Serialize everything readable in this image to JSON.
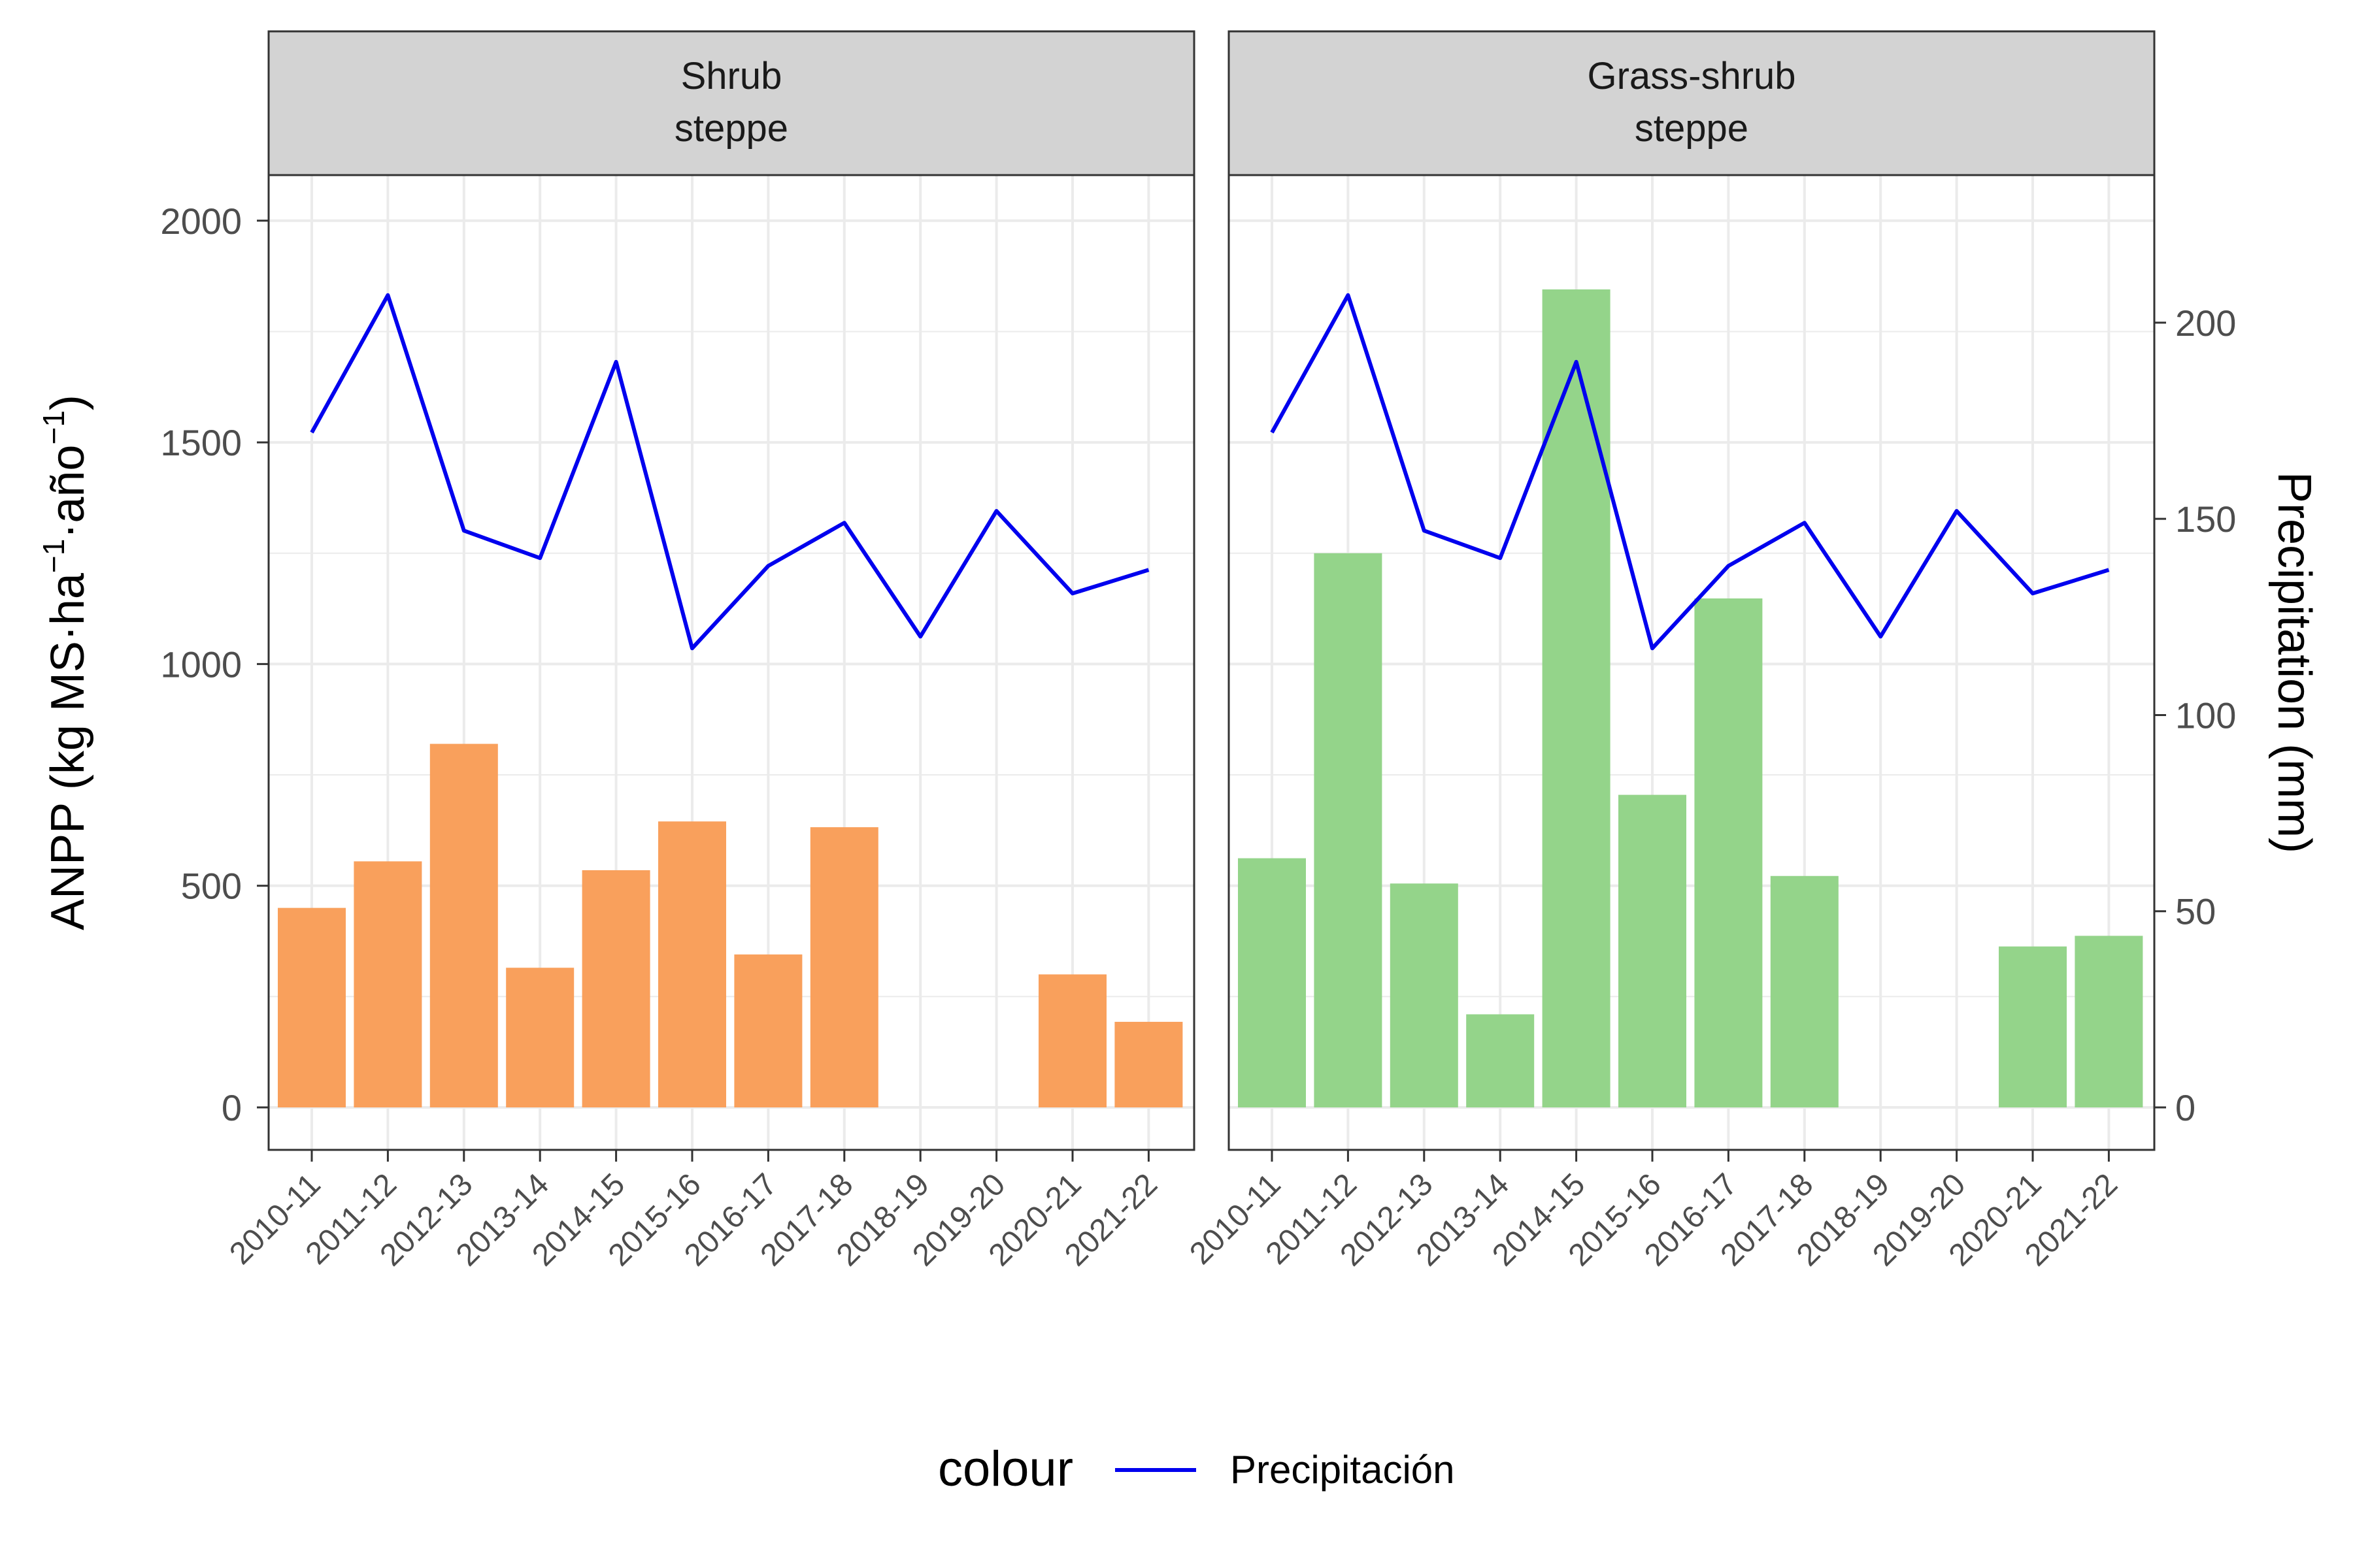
{
  "chart_data": {
    "type": "bar",
    "categories": [
      "2010-11",
      "2011-12",
      "2012-13",
      "2013-14",
      "2014-15",
      "2015-16",
      "2016-17",
      "2017-18",
      "2018-19",
      "2019-20",
      "2020-21",
      "2021-22"
    ],
    "ylabel_left": "ANPP (kg MS·ha",
    "ylabel_left_sup1": "−1",
    "ylabel_left_mid": "·año",
    "ylabel_left_sup2": "−1",
    "ylabel_left_end": ")",
    "ylabel_right": "Precipitation (mm)",
    "ylim_left": [
      -90,
      2100
    ],
    "left_ticks": [
      "0",
      "500",
      "1000",
      "1500",
      "2000"
    ],
    "left_tick_values": [
      0,
      500,
      1000,
      1500,
      2000
    ],
    "right_ticks": [
      "0",
      "50",
      "100",
      "150",
      "200"
    ],
    "right_tick_values": [
      0,
      50,
      100,
      150,
      200
    ],
    "right_axis_scale": 8.85,
    "grid": true,
    "legend": {
      "title": "colour",
      "position": "bottom",
      "entries": [
        {
          "label": "Precipitación",
          "color": "#0000EE"
        }
      ]
    },
    "panels": [
      {
        "title_line1": "Shrub",
        "title_line2": "steppe",
        "bar_color": "#F9A05C",
        "bars": [
          450,
          555,
          820,
          315,
          535,
          645,
          345,
          632,
          null,
          null,
          300,
          193
        ],
        "precip_color": "#0000EE",
        "precipitation": [
          172,
          207,
          147,
          140,
          190,
          117,
          138,
          149,
          120,
          152,
          131,
          137
        ]
      },
      {
        "title_line1": "Grass-shrub",
        "title_line2": "steppe",
        "bar_color": "#94D48A",
        "bars": [
          562,
          1250,
          505,
          210,
          1845,
          705,
          1148,
          522,
          null,
          null,
          363,
          387
        ],
        "precip_color": "#0000EE",
        "precipitation": [
          172,
          207,
          147,
          140,
          190,
          117,
          138,
          149,
          120,
          152,
          131,
          137
        ]
      }
    ]
  }
}
